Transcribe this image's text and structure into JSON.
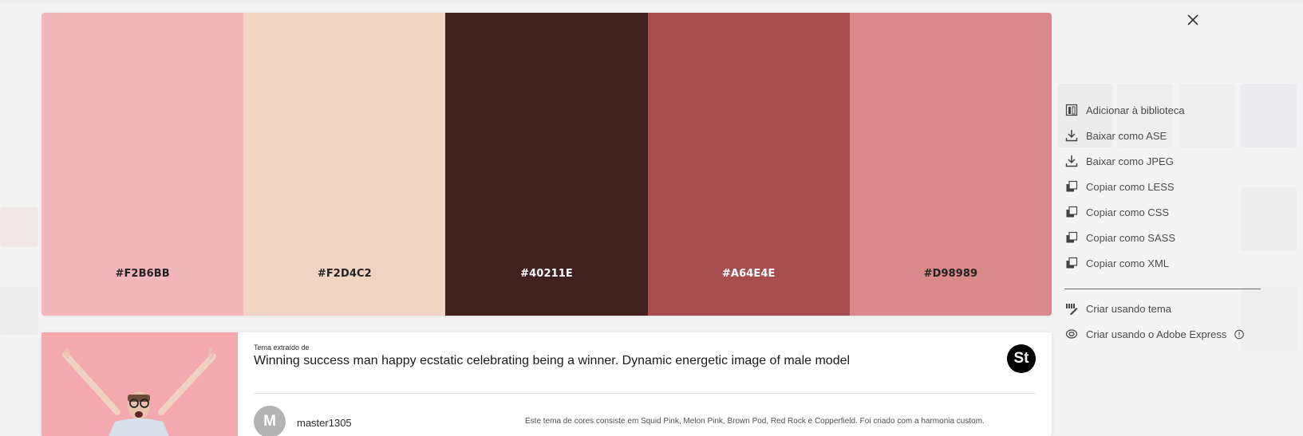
{
  "palette": {
    "swatches": [
      {
        "hex": "#F2B6BB",
        "text_color": "#222222"
      },
      {
        "hex": "#F2D4C2",
        "text_color": "#222222"
      },
      {
        "hex": "#40211E",
        "text_color": "#ffffff"
      },
      {
        "hex": "#A64E4E",
        "text_color": "#ffffff"
      },
      {
        "hex": "#D98989",
        "text_color": "#222222"
      }
    ]
  },
  "actions": [
    {
      "label": "Adicionar à biblioteca",
      "icon": "library-add-icon"
    },
    {
      "label": "Baixar como ASE",
      "icon": "download-icon"
    },
    {
      "label": "Baixar como JPEG",
      "icon": "download-icon"
    },
    {
      "label": "Copiar como LESS",
      "icon": "copy-icon"
    },
    {
      "label": "Copiar como CSS",
      "icon": "copy-icon"
    },
    {
      "label": "Copiar como SASS",
      "icon": "copy-icon"
    },
    {
      "label": "Copiar como XML",
      "icon": "copy-icon"
    }
  ],
  "create_actions": [
    {
      "label": "Criar usando tema",
      "icon": "edit-theme-icon"
    },
    {
      "label": "Criar usando o Adobe Express",
      "icon": "adobe-express-icon",
      "info_icon": "info-icon"
    }
  ],
  "card": {
    "kicker": "Tema extraído de",
    "title": "Winning success man happy ecstatic celebrating being a winner. Dynamic energetic image of male model",
    "stock_badge": "St",
    "avatar_letter": "M",
    "username": "master1305",
    "description": "Este tema de cores consiste em Squid Pink, Melon Pink, Brown Pod, Red Rock e Copperfield. Foi criado com a harmonia custom."
  },
  "colors": {
    "page_bg": "#f4f4f4",
    "thumb_bg": "#f2a8ad",
    "badge_bg": "#000000"
  }
}
